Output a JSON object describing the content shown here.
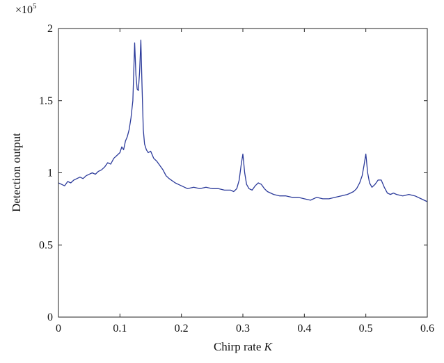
{
  "chart_data": {
    "type": "line",
    "title": "",
    "xlabel": "Chirp rate",
    "xlabel_italic_symbol": "K",
    "ylabel": "Detection output",
    "y_multiplier": "×10",
    "y_multiplier_exp": "5",
    "xlim": [
      0,
      0.6
    ],
    "ylim": [
      0,
      2
    ],
    "xticks": [
      0,
      0.1,
      0.2,
      0.3,
      0.4,
      0.5,
      0.6
    ],
    "xtick_labels": [
      "0",
      "0.1",
      "0.2",
      "0.3",
      "0.4",
      "0.5",
      "0.6"
    ],
    "yticks": [
      0,
      0.5,
      1,
      1.5,
      2
    ],
    "ytick_labels": [
      "0",
      "0.5",
      "1",
      "1.5",
      "2"
    ],
    "grid": false,
    "legend": "none",
    "series": [
      {
        "color": "#2b3a9a",
        "x": [
          0,
          0.005,
          0.01,
          0.015,
          0.02,
          0.025,
          0.03,
          0.035,
          0.04,
          0.045,
          0.05,
          0.055,
          0.06,
          0.065,
          0.07,
          0.075,
          0.08,
          0.085,
          0.09,
          0.095,
          0.1,
          0.103,
          0.106,
          0.109,
          0.112,
          0.115,
          0.118,
          0.121,
          0.124,
          0.126,
          0.128,
          0.13,
          0.132,
          0.134,
          0.136,
          0.138,
          0.14,
          0.143,
          0.146,
          0.15,
          0.155,
          0.16,
          0.165,
          0.17,
          0.175,
          0.18,
          0.19,
          0.2,
          0.21,
          0.22,
          0.23,
          0.24,
          0.25,
          0.26,
          0.27,
          0.28,
          0.285,
          0.29,
          0.294,
          0.297,
          0.3,
          0.303,
          0.306,
          0.31,
          0.315,
          0.32,
          0.325,
          0.33,
          0.335,
          0.34,
          0.35,
          0.36,
          0.37,
          0.38,
          0.39,
          0.4,
          0.41,
          0.42,
          0.43,
          0.44,
          0.45,
          0.46,
          0.47,
          0.475,
          0.48,
          0.485,
          0.49,
          0.494,
          0.497,
          0.5,
          0.503,
          0.506,
          0.51,
          0.515,
          0.52,
          0.525,
          0.53,
          0.535,
          0.54,
          0.545,
          0.55,
          0.56,
          0.57,
          0.58,
          0.59,
          0.6
        ],
        "y": [
          0.93,
          0.92,
          0.91,
          0.94,
          0.93,
          0.95,
          0.96,
          0.97,
          0.96,
          0.98,
          0.99,
          1.0,
          0.99,
          1.01,
          1.02,
          1.04,
          1.07,
          1.06,
          1.1,
          1.12,
          1.14,
          1.18,
          1.16,
          1.22,
          1.25,
          1.3,
          1.38,
          1.5,
          1.9,
          1.68,
          1.58,
          1.57,
          1.7,
          1.92,
          1.6,
          1.3,
          1.2,
          1.16,
          1.14,
          1.15,
          1.1,
          1.08,
          1.05,
          1.02,
          0.98,
          0.96,
          0.93,
          0.91,
          0.89,
          0.9,
          0.89,
          0.9,
          0.89,
          0.89,
          0.88,
          0.88,
          0.87,
          0.89,
          0.95,
          1.05,
          1.13,
          1.0,
          0.92,
          0.89,
          0.88,
          0.91,
          0.93,
          0.92,
          0.89,
          0.87,
          0.85,
          0.84,
          0.84,
          0.83,
          0.83,
          0.82,
          0.81,
          0.83,
          0.82,
          0.82,
          0.83,
          0.84,
          0.85,
          0.86,
          0.87,
          0.89,
          0.93,
          0.98,
          1.05,
          1.13,
          1.0,
          0.93,
          0.9,
          0.92,
          0.95,
          0.95,
          0.9,
          0.86,
          0.85,
          0.86,
          0.85,
          0.84,
          0.85,
          0.84,
          0.82,
          0.8
        ]
      }
    ]
  }
}
